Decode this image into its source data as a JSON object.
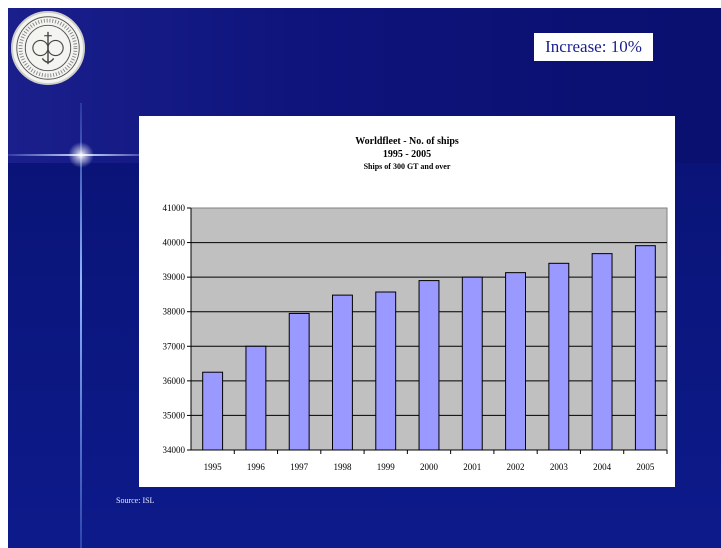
{
  "increase_label": "Increase: 10%",
  "source_label": "Source: ISL",
  "colors": {
    "slide_bg": "#12188a",
    "bar_fill": "#9999ff",
    "plot_bg": "#c0c0c0"
  },
  "icons": {
    "seal": "institutional-seal-icon"
  },
  "chart_data": {
    "type": "bar",
    "title": "Worldfleet - No. of ships",
    "subtitle": "1995 - 2005",
    "subtitle2": "Ships of 300 GT and over",
    "categories": [
      "1995",
      "1996",
      "1997",
      "1998",
      "1999",
      "2000",
      "2001",
      "2002",
      "2003",
      "2004",
      "2005"
    ],
    "values": [
      36250,
      37000,
      37950,
      38480,
      38570,
      38900,
      39000,
      39130,
      39400,
      39680,
      39910
    ],
    "ylim": [
      34000,
      41000
    ],
    "yticks": [
      34000,
      35000,
      36000,
      37000,
      38000,
      39000,
      40000,
      41000
    ],
    "grid": true,
    "xlabel": "",
    "ylabel": ""
  }
}
